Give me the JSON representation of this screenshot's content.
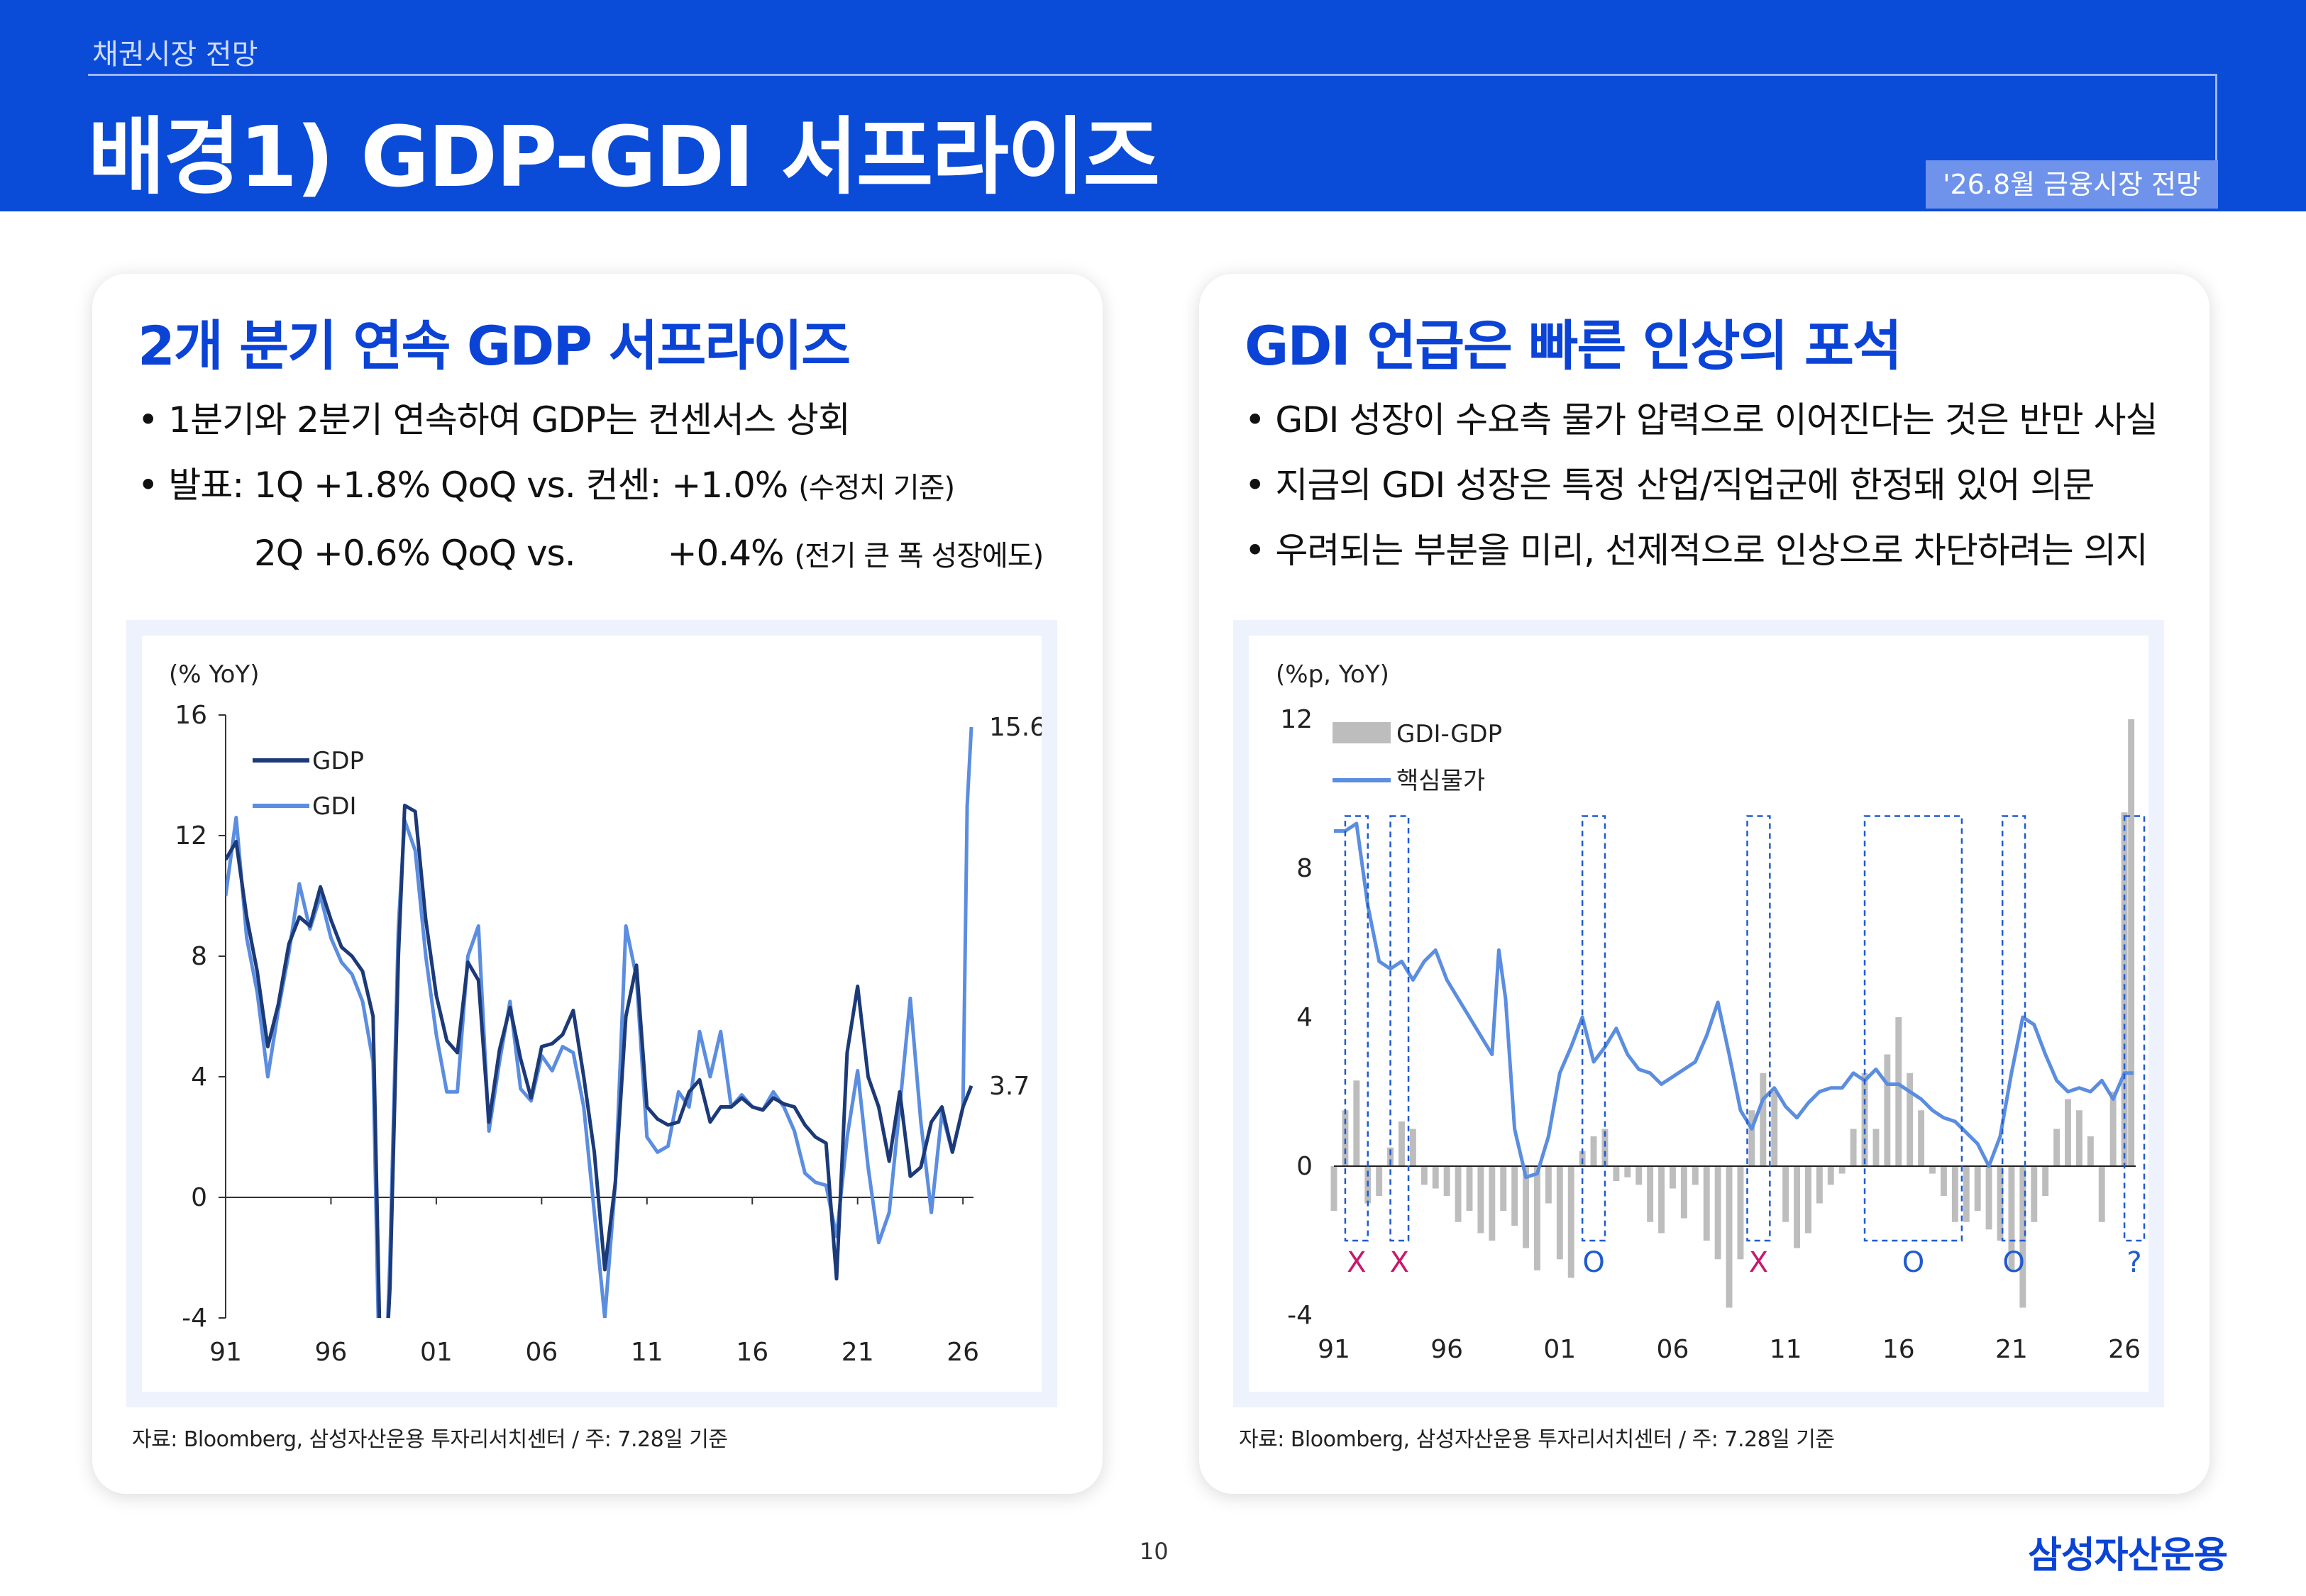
{
  "header": {
    "section": "채권시장 전망",
    "title": "배경1) GDP-GDI 서프라이즈",
    "badge": "'26.8월 금융시장 전망"
  },
  "left": {
    "heading": "2개 분기 연속 GDP 서프라이즈",
    "bullet1": "• 1분기와 2분기 연속하여 GDP는 컨센서스 상회",
    "bullet2_main": "• 발표: 1Q +1.8% QoQ vs. 컨센: +1.0% ",
    "bullet2_note": "(수정치 기준)",
    "bullet3_a": "2Q +0.6% QoQ vs.",
    "bullet3_b": "+0.4% ",
    "bullet3_note": "(전기 큰 폭 성장에도)",
    "source": "자료: Bloomberg, 삼성자산운용 투자리서치센터 / 주: 7.28일 기준"
  },
  "right": {
    "heading": "GDI 언급은 빠른 인상의 포석",
    "bullet1": "• GDI 성장이 수요측 물가 압력으로 이어진다는 것은 반만 사실",
    "bullet2": "• 지금의 GDI 성장은 특정 산업/직업군에 한정돼 있어 의문",
    "bullet3": "• 우려되는 부분을 미리, 선제적으로 인상으로 차단하려는 의지",
    "source": "자료: Bloomberg, 삼성자산운용 투자리서치센터 / 주: 7.28일 기준"
  },
  "page_number": "10",
  "logo": "삼성자산운용",
  "colors": {
    "brand": "#0a4bd8",
    "gdp": "#1c3a78",
    "gdi": "#5b8de0",
    "bar": "#bdbdbd",
    "mark_x": "#c8176c",
    "mark_o": "#1f5bd0"
  },
  "chart_data": [
    {
      "type": "line",
      "unit_label": "(% YoY)",
      "x_ticks": [
        "91",
        "96",
        "01",
        "06",
        "11",
        "16",
        "21",
        "26"
      ],
      "y_ticks": [
        "16",
        "12",
        "8",
        "4",
        "0",
        "-4"
      ],
      "ylim": [
        -4,
        16
      ],
      "xlim": [
        1991,
        2026.5
      ],
      "legend": [
        "GDP",
        "GDI"
      ],
      "end_labels": [
        "15.6",
        "3.7"
      ],
      "series": [
        {
          "name": "GDP",
          "x": [
            1991.0,
            1991.5,
            1992.0,
            1992.5,
            1993.0,
            1993.5,
            1994.0,
            1994.5,
            1995.0,
            1995.5,
            1996.0,
            1996.5,
            1997.0,
            1997.5,
            1998.0,
            1998.3,
            1998.5,
            1998.8,
            1999.2,
            1999.5,
            2000.0,
            2000.5,
            2001.0,
            2001.5,
            2002.0,
            2002.5,
            2003.0,
            2003.5,
            2004.0,
            2004.5,
            2005.0,
            2005.5,
            2006.0,
            2006.5,
            2007.0,
            2007.5,
            2008.0,
            2008.5,
            2009.0,
            2009.5,
            2010.0,
            2010.5,
            2011.0,
            2011.5,
            2012.0,
            2012.5,
            2013.0,
            2013.5,
            2014.0,
            2014.5,
            2015.0,
            2015.5,
            2016.0,
            2016.5,
            2017.0,
            2017.5,
            2018.0,
            2018.5,
            2019.0,
            2019.5,
            2020.0,
            2020.5,
            2021.0,
            2021.5,
            2022.0,
            2022.5,
            2023.0,
            2023.5,
            2024.0,
            2024.5,
            2025.0,
            2025.5,
            2026.0,
            2026.4
          ],
          "y": [
            11.2,
            11.8,
            9.3,
            7.5,
            5.0,
            6.4,
            8.4,
            9.3,
            9.0,
            10.3,
            9.2,
            8.3,
            8.0,
            7.5,
            6.0,
            -4.0,
            -7.0,
            -3.0,
            8.0,
            13.0,
            12.8,
            9.2,
            6.7,
            5.2,
            4.8,
            7.8,
            7.2,
            2.5,
            4.9,
            6.3,
            4.6,
            3.3,
            5.0,
            5.1,
            5.4,
            6.2,
            4.0,
            1.5,
            -2.4,
            0.5,
            6.0,
            7.7,
            3.0,
            2.6,
            2.4,
            2.5,
            3.5,
            3.9,
            2.5,
            3.0,
            3.0,
            3.3,
            3.0,
            2.9,
            3.3,
            3.1,
            3.0,
            2.4,
            2.0,
            1.8,
            -2.7,
            4.8,
            7.0,
            4.0,
            3.0,
            1.2,
            3.5,
            0.7,
            1.0,
            2.5,
            3.0,
            1.5,
            3.0,
            3.7
          ]
        },
        {
          "name": "GDI",
          "x": [
            1991.0,
            1991.5,
            1992.0,
            1992.5,
            1993.0,
            1993.5,
            1994.0,
            1994.5,
            1995.0,
            1995.5,
            1996.0,
            1996.5,
            1997.0,
            1997.5,
            1998.0,
            1998.3,
            1998.5,
            1998.8,
            1999.2,
            1999.5,
            2000.0,
            2000.5,
            2001.0,
            2001.5,
            2002.0,
            2002.5,
            2003.0,
            2003.5,
            2004.0,
            2004.5,
            2005.0,
            2005.5,
            2006.0,
            2006.5,
            2007.0,
            2007.5,
            2008.0,
            2008.5,
            2009.0,
            2009.5,
            2010.0,
            2010.5,
            2011.0,
            2011.5,
            2012.0,
            2012.5,
            2013.0,
            2013.5,
            2014.0,
            2014.5,
            2015.0,
            2015.5,
            2016.0,
            2016.5,
            2017.0,
            2017.5,
            2018.0,
            2018.5,
            2019.0,
            2019.5,
            2020.0,
            2020.5,
            2021.0,
            2021.5,
            2022.0,
            2022.5,
            2023.0,
            2023.5,
            2024.0,
            2024.5,
            2025.0,
            2025.5,
            2026.0,
            2026.2,
            2026.4
          ],
          "y": [
            10.0,
            12.6,
            8.6,
            6.8,
            4.0,
            6.2,
            8.1,
            10.4,
            8.9,
            10.0,
            8.6,
            7.8,
            7.4,
            6.5,
            4.5,
            -6.0,
            -8.0,
            -2.0,
            9.0,
            12.5,
            11.5,
            8.0,
            5.4,
            3.5,
            3.5,
            8.0,
            9.0,
            2.2,
            4.5,
            6.5,
            3.6,
            3.2,
            4.7,
            4.2,
            5.0,
            4.8,
            3.0,
            -0.5,
            -4.0,
            0.5,
            9.0,
            7.3,
            2.0,
            1.5,
            1.7,
            3.5,
            3.0,
            5.5,
            4.0,
            5.5,
            3.0,
            3.4,
            3.0,
            2.9,
            3.5,
            3.0,
            2.2,
            0.8,
            0.5,
            0.4,
            -1.3,
            2.0,
            4.2,
            1.0,
            -1.5,
            -0.5,
            3.0,
            6.6,
            2.5,
            -0.5,
            2.8,
            1.5,
            3.0,
            13.0,
            15.6
          ]
        }
      ]
    },
    {
      "type": "bar+line",
      "unit_label": "(%p, YoY)",
      "x_ticks": [
        "91",
        "96",
        "01",
        "06",
        "11",
        "16",
        "21",
        "26"
      ],
      "y_ticks": [
        "12",
        "8",
        "4",
        "0",
        "-4"
      ],
      "ylim": [
        -4,
        12
      ],
      "xlim": [
        1991,
        2026.5
      ],
      "legend": [
        "GDI-GDP",
        "핵심물가"
      ],
      "period_marks": [
        {
          "start": 1991.5,
          "end": 1992.5,
          "label": "X"
        },
        {
          "start": 1993.5,
          "end": 1994.3,
          "label": "X"
        },
        {
          "start": 2002.0,
          "end": 2003.0,
          "label": "O"
        },
        {
          "start": 2009.3,
          "end": 2010.3,
          "label": "X"
        },
        {
          "start": 2014.5,
          "end": 2018.8,
          "label": "O"
        },
        {
          "start": 2020.6,
          "end": 2021.6,
          "label": "O"
        },
        {
          "start": 2026.0,
          "end": 2027.0,
          "label": "?"
        }
      ],
      "series": [
        {
          "name": "GDI-GDP",
          "x": [
            1991.0,
            1991.5,
            1992.0,
            1992.5,
            1993.0,
            1993.5,
            1994.0,
            1994.5,
            1995.0,
            1995.5,
            1996.0,
            1996.5,
            1997.0,
            1997.5,
            1998.0,
            1998.5,
            1999.0,
            1999.5,
            2000.0,
            2000.5,
            2001.0,
            2001.5,
            2002.0,
            2002.5,
            2003.0,
            2003.5,
            2004.0,
            2004.5,
            2005.0,
            2005.5,
            2006.0,
            2006.5,
            2007.0,
            2007.5,
            2008.0,
            2008.5,
            2009.0,
            2009.5,
            2010.0,
            2010.5,
            2011.0,
            2011.5,
            2012.0,
            2012.5,
            2013.0,
            2013.5,
            2014.0,
            2014.5,
            2015.0,
            2015.5,
            2016.0,
            2016.5,
            2017.0,
            2017.5,
            2018.0,
            2018.5,
            2019.0,
            2019.5,
            2020.0,
            2020.5,
            2021.0,
            2021.5,
            2022.0,
            2022.5,
            2023.0,
            2023.5,
            2024.0,
            2024.5,
            2025.0,
            2025.5,
            2026.0,
            2026.3
          ],
          "y": [
            -1.2,
            1.5,
            2.3,
            -1.0,
            -0.8,
            0.5,
            1.2,
            1.0,
            -0.5,
            -0.6,
            -0.8,
            -1.5,
            -1.2,
            -1.8,
            -2.0,
            -1.2,
            -1.6,
            -2.2,
            -2.8,
            -1.0,
            -2.5,
            -3.0,
            0.4,
            0.8,
            1.0,
            -0.4,
            -0.3,
            -0.5,
            -1.5,
            -1.8,
            -0.6,
            -1.4,
            -0.5,
            -2.0,
            -2.5,
            -3.8,
            -2.5,
            1.5,
            2.5,
            2.0,
            -1.5,
            -2.2,
            -1.8,
            -1.0,
            -0.5,
            -0.2,
            1.0,
            2.5,
            1.0,
            3.0,
            4.0,
            2.5,
            1.5,
            -0.2,
            -0.8,
            -1.5,
            -1.5,
            -1.2,
            -1.7,
            -2.0,
            -2.8,
            -3.8,
            -1.5,
            -0.8,
            1.0,
            1.8,
            1.5,
            0.8,
            -1.5,
            2.0,
            9.5,
            12.0
          ]
        },
        {
          "name": "핵심물가",
          "x": [
            1991.0,
            1991.5,
            1992.0,
            1992.5,
            1993.0,
            1993.5,
            1994.0,
            1994.5,
            1995.0,
            1995.5,
            1996.0,
            1996.5,
            1997.0,
            1997.5,
            1998.0,
            1998.3,
            1998.6,
            1999.0,
            1999.5,
            2000.0,
            2000.5,
            2001.0,
            2001.5,
            2002.0,
            2002.5,
            2003.0,
            2003.5,
            2004.0,
            2004.5,
            2005.0,
            2005.5,
            2006.0,
            2006.5,
            2007.0,
            2007.5,
            2008.0,
            2008.5,
            2009.0,
            2009.5,
            2010.0,
            2010.5,
            2011.0,
            2011.5,
            2012.0,
            2012.5,
            2013.0,
            2013.5,
            2014.0,
            2014.5,
            2015.0,
            2015.5,
            2016.0,
            2016.5,
            2017.0,
            2017.5,
            2018.0,
            2018.5,
            2019.0,
            2019.5,
            2020.0,
            2020.5,
            2021.0,
            2021.5,
            2022.0,
            2022.5,
            2023.0,
            2023.5,
            2024.0,
            2024.5,
            2025.0,
            2025.5,
            2026.0,
            2026.4
          ],
          "y": [
            9.0,
            9.0,
            9.2,
            7.0,
            5.5,
            5.3,
            5.5,
            5.0,
            5.5,
            5.8,
            5.0,
            4.5,
            4.0,
            3.5,
            3.0,
            5.8,
            4.5,
            1.0,
            -0.3,
            -0.2,
            0.8,
            2.5,
            3.2,
            4.0,
            2.8,
            3.2,
            3.7,
            3.0,
            2.6,
            2.5,
            2.2,
            2.4,
            2.6,
            2.8,
            3.5,
            4.4,
            3.0,
            1.5,
            1.0,
            1.8,
            2.1,
            1.6,
            1.3,
            1.7,
            2.0,
            2.1,
            2.1,
            2.5,
            2.3,
            2.6,
            2.2,
            2.2,
            2.0,
            1.8,
            1.5,
            1.3,
            1.2,
            0.9,
            0.6,
            0.0,
            0.8,
            2.5,
            4.0,
            3.8,
            3.0,
            2.3,
            2.0,
            2.1,
            2.0,
            2.3,
            1.8,
            2.5,
            2.5
          ]
        }
      ]
    }
  ]
}
